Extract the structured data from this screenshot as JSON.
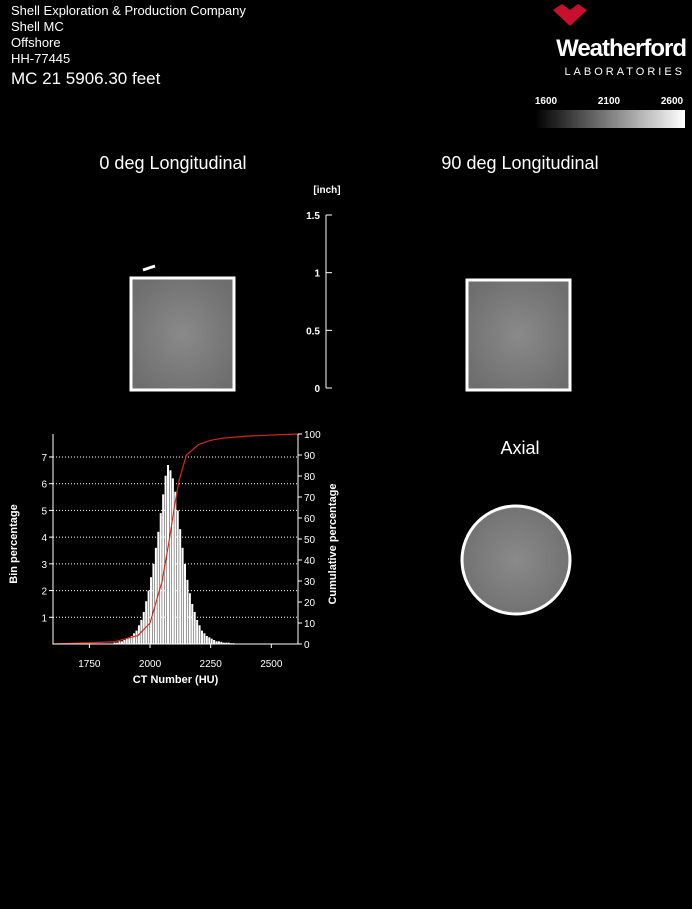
{
  "header": {
    "lines": [
      "Shell Exploration & Production Company",
      "Shell MC",
      "Offshore",
      "HH-77445"
    ],
    "depth": "MC 21  5906.30  feet"
  },
  "logo": {
    "name": "Weatherford",
    "sub": "LABORATORIES"
  },
  "colorbar": {
    "lim": [
      1600,
      2600
    ],
    "ticks": [
      1600,
      2100,
      2600
    ]
  },
  "views": {
    "longitudinal_0": "0 deg Longitudinal",
    "longitudinal_90": "90 deg Longitudinal",
    "axial": "Axial"
  },
  "scale": {
    "label": "[inch]",
    "ylim": [
      0,
      1.5
    ],
    "yticks": [
      0,
      0.5,
      1,
      1.5
    ]
  },
  "histogram": {
    "type": "histogram",
    "xlabel": "CT Number (HU)",
    "ylabel": "Bin percentage",
    "y2label": "Cumulative percentage",
    "xlim": [
      1600,
      2610
    ],
    "xticks": [
      1750,
      2000,
      2250,
      2500
    ],
    "ylim": [
      0,
      7.86
    ],
    "yticks": [
      1,
      2,
      3,
      4,
      5,
      6,
      7
    ],
    "grid": true,
    "y2lim": [
      0,
      100
    ],
    "y2ticks": [
      0,
      10,
      20,
      30,
      40,
      50,
      60,
      70,
      80,
      90,
      100
    ],
    "color": "#ffffff",
    "bins": [
      1850,
      1860,
      1870,
      1880,
      1890,
      1900,
      1910,
      1920,
      1930,
      1940,
      1950,
      1960,
      1970,
      1980,
      1990,
      2000,
      2010,
      2020,
      2030,
      2040,
      2050,
      2060,
      2070,
      2080,
      2090,
      2100,
      2110,
      2120,
      2130,
      2140,
      2150,
      2160,
      2170,
      2180,
      2190,
      2200,
      2210,
      2220,
      2230,
      2240,
      2250,
      2260,
      2270,
      2280,
      2290,
      2300,
      2310,
      2320,
      2330,
      2340,
      2350
    ],
    "counts": [
      0.05,
      0.05,
      0.1,
      0.1,
      0.15,
      0.2,
      0.25,
      0.3,
      0.4,
      0.5,
      0.7,
      0.9,
      1.2,
      1.6,
      2.0,
      2.5,
      3.0,
      3.6,
      4.2,
      4.9,
      5.6,
      6.3,
      6.7,
      6.5,
      6.2,
      5.7,
      5.0,
      4.3,
      3.6,
      3.0,
      2.4,
      1.9,
      1.5,
      1.2,
      0.9,
      0.7,
      0.5,
      0.4,
      0.3,
      0.25,
      0.2,
      0.15,
      0.1,
      0.1,
      0.08,
      0.05,
      0.05,
      0.05,
      0.03,
      0.03
    ],
    "cumulative": {
      "color": "#d42a1a",
      "axis": "y2",
      "x": [
        1600,
        1850,
        1950,
        2000,
        2050,
        2080,
        2100,
        2120,
        2150,
        2200,
        2250,
        2300,
        2400,
        2500,
        2610
      ],
      "values": [
        0,
        1,
        4,
        10,
        30,
        50,
        65,
        78,
        90,
        95,
        97,
        98,
        99,
        99.5,
        100
      ]
    }
  }
}
